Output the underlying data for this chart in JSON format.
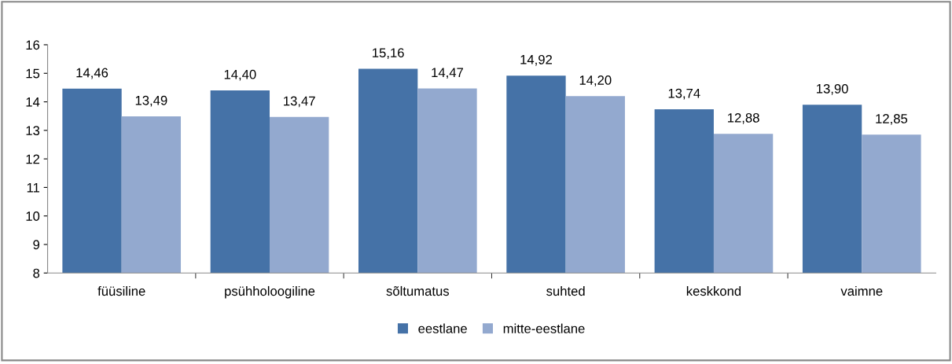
{
  "chart_data": {
    "type": "bar",
    "categories": [
      "füüsiline",
      "psühholoogiline",
      "sõltumatus",
      "suhted",
      "keskkond",
      "vaimne"
    ],
    "series": [
      {
        "name": "eestlane",
        "color": "#4572a7",
        "values": [
          14.46,
          14.4,
          15.16,
          14.92,
          13.74,
          13.9
        ],
        "value_labels": [
          "14,46",
          "14,40",
          "15,16",
          "14,92",
          "13,74",
          "13,90"
        ]
      },
      {
        "name": "mitte-eestlane",
        "color": "#93a9cf",
        "values": [
          13.49,
          13.47,
          14.47,
          14.2,
          12.88,
          12.85
        ],
        "value_labels": [
          "13,49",
          "13,47",
          "14,47",
          "14,20",
          "12,88",
          "12,85"
        ]
      }
    ],
    "ylim": [
      8,
      16
    ],
    "yticks": [
      8,
      9,
      10,
      11,
      12,
      13,
      14,
      15,
      16
    ],
    "grid": false,
    "legend": "bottom"
  }
}
